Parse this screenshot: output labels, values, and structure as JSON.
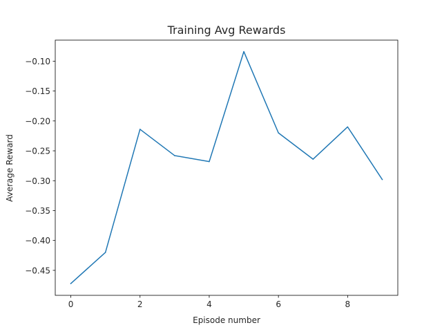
{
  "chart_data": {
    "type": "line",
    "title": "Training Avg Rewards",
    "xlabel": "Episode number",
    "ylabel": "Average Reward",
    "xlim": [
      -0.45,
      9.45
    ],
    "ylim": [
      -0.4918,
      -0.0648
    ],
    "xticks": [
      0,
      2,
      4,
      6,
      8
    ],
    "xtick_labels": [
      "0",
      "2",
      "4",
      "6",
      "8"
    ],
    "yticks": [
      -0.45,
      -0.4,
      -0.35,
      -0.3,
      -0.25,
      -0.2,
      -0.15,
      -0.1
    ],
    "ytick_labels": [
      "−0.45",
      "−0.40",
      "−0.35",
      "−0.30",
      "−0.25",
      "−0.20",
      "−0.15",
      "−0.10"
    ],
    "grid": false,
    "legend": "none",
    "series": [
      {
        "color": "#1f77b4",
        "x": [
          0,
          1,
          2,
          3,
          4,
          5,
          6,
          7,
          8,
          9
        ],
        "y": [
          -0.472,
          -0.42,
          -0.214,
          -0.258,
          -0.268,
          -0.084,
          -0.22,
          -0.264,
          -0.21,
          -0.298
        ]
      }
    ]
  }
}
